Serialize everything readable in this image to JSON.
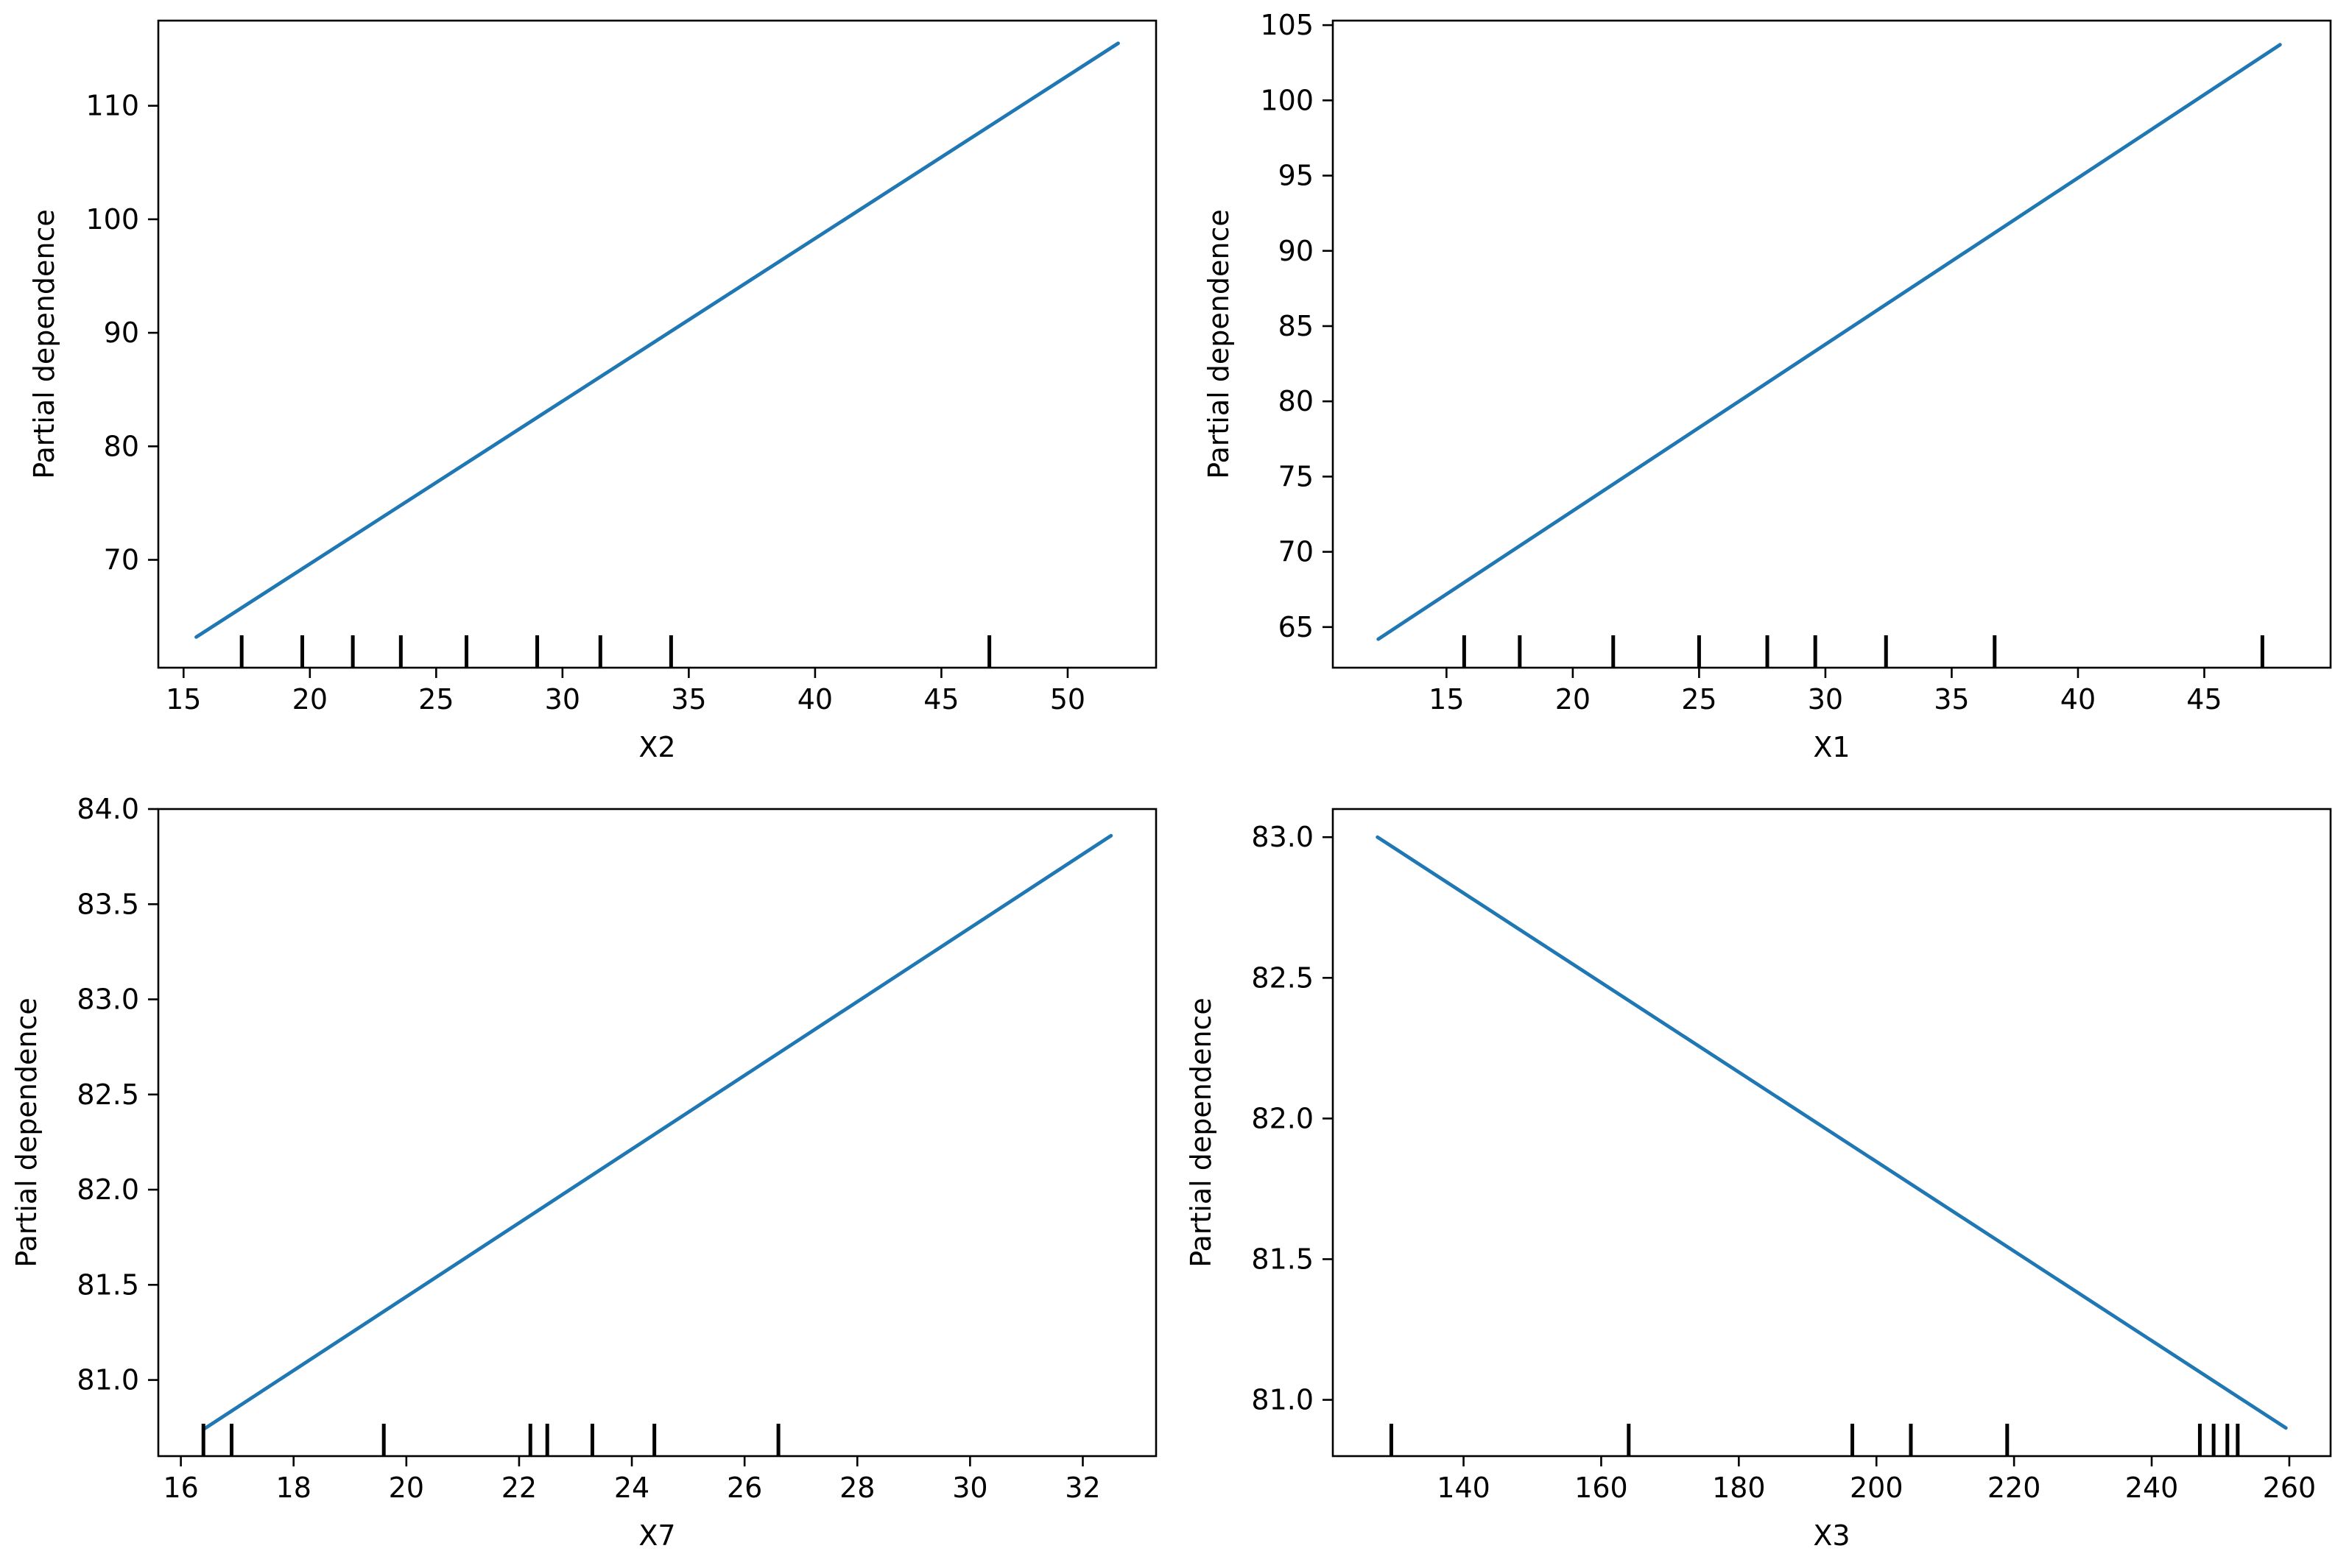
{
  "chart_data": [
    {
      "type": "line",
      "title": "",
      "xlabel": "X2",
      "ylabel": "Partial dependence",
      "xlim": [
        14,
        53.5
      ],
      "ylim": [
        60.5,
        117.5
      ],
      "xticks": [
        15,
        20,
        25,
        30,
        35,
        40,
        45,
        50
      ],
      "yticks": [
        70,
        80,
        90,
        100,
        110
      ],
      "ytick_labels": [
        "70",
        "80",
        "90",
        "100",
        "110"
      ],
      "x": [
        15.5,
        52
      ],
      "y": [
        63.2,
        115.5
      ],
      "rug_deciles": [
        17.3,
        19.7,
        21.7,
        23.6,
        26.2,
        29,
        31.5,
        34.3,
        46.9
      ],
      "color": "#1f77b4",
      "grid": false
    },
    {
      "type": "line",
      "title": "",
      "xlabel": "X1",
      "ylabel": "Partial dependence",
      "xlim": [
        10.5,
        50
      ],
      "ylim": [
        62.3,
        105.3
      ],
      "xticks": [
        15,
        20,
        25,
        30,
        35,
        40,
        45
      ],
      "yticks": [
        65,
        70,
        75,
        80,
        85,
        90,
        95,
        100,
        105
      ],
      "ytick_labels": [
        "65",
        "70",
        "75",
        "80",
        "85",
        "90",
        "95",
        "100",
        "105"
      ],
      "x": [
        12.3,
        48
      ],
      "y": [
        64.2,
        103.7
      ],
      "rug_deciles": [
        15.7,
        17.9,
        21.6,
        25,
        27.7,
        29.6,
        32.4,
        36.7,
        47.3
      ],
      "color": "#1f77b4",
      "grid": false
    },
    {
      "type": "line",
      "title": "",
      "xlabel": "X7",
      "ylabel": "Partial dependence",
      "xlim": [
        15.6,
        33.3
      ],
      "ylim": [
        80.6,
        84.0
      ],
      "xticks": [
        16,
        18,
        20,
        22,
        24,
        26,
        28,
        30,
        32
      ],
      "yticks": [
        81.0,
        81.5,
        82.0,
        82.5,
        83.0,
        83.5,
        84.0
      ],
      "ytick_labels": [
        "81.0",
        "81.5",
        "82.0",
        "82.5",
        "83.0",
        "83.5",
        "84.0"
      ],
      "x": [
        16.4,
        32.5
      ],
      "y": [
        80.74,
        83.86
      ],
      "rug_deciles": [
        16.4,
        16.9,
        19.6,
        22.2,
        22.5,
        23.3,
        24.4,
        26.6
      ],
      "color": "#1f77b4",
      "grid": false
    },
    {
      "type": "line",
      "title": "",
      "xlabel": "X3",
      "ylabel": "Partial dependence",
      "xlim": [
        121,
        266
      ],
      "ylim": [
        80.8,
        83.1
      ],
      "xticks": [
        140,
        160,
        180,
        200,
        220,
        240,
        260
      ],
      "yticks": [
        81.0,
        81.5,
        82.0,
        82.5,
        83.0
      ],
      "ytick_labels": [
        "81.0",
        "81.5",
        "82.0",
        "82.5",
        "83.0"
      ],
      "x": [
        127.5,
        259.5
      ],
      "y": [
        83.0,
        80.9
      ],
      "rug_deciles": [
        129.5,
        164,
        196.5,
        205,
        219,
        247,
        249,
        251,
        252.5
      ],
      "color": "#1f77b4",
      "grid": false
    }
  ]
}
